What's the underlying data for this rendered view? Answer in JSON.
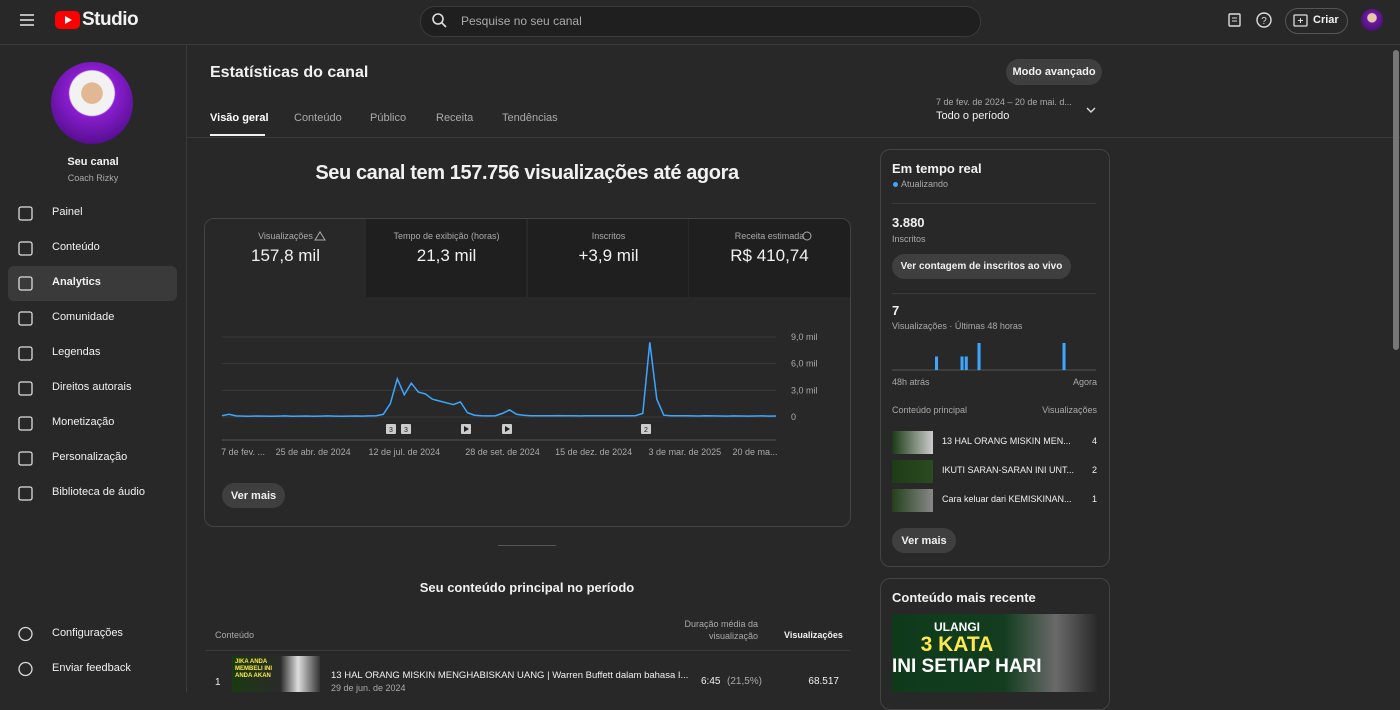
{
  "header": {
    "logo": "Studio",
    "search_placeholder": "Pesquise no seu canal",
    "create": "Criar"
  },
  "sidebar": {
    "channel_title": "Seu canal",
    "channel_name": "Coach Rizky",
    "nav": [
      "Painel",
      "Conteúdo",
      "Analytics",
      "Comunidade",
      "Legendas",
      "Direitos autorais",
      "Monetização",
      "Personalização",
      "Biblioteca de áudio"
    ],
    "footer": [
      "Configurações",
      "Enviar feedback"
    ]
  },
  "page": {
    "title": "Estatísticas do canal",
    "advanced": "Modo avançado",
    "tabs": [
      "Visão geral",
      "Conteúdo",
      "Público",
      "Receita",
      "Tendências"
    ],
    "date_range": "7 de fev. de 2024 – 20 de mai. d...",
    "period": "Todo o período"
  },
  "overview": {
    "headline": "Seu canal tem 157.756 visualizações até agora",
    "cards": [
      {
        "label": "Visualizações",
        "value": "157,8 mil"
      },
      {
        "label": "Tempo de exibição (horas)",
        "value": "21,3 mil"
      },
      {
        "label": "Inscritos",
        "value": "+3,9 mil"
      },
      {
        "label": "Receita estimada",
        "value": "R$ 410,74"
      }
    ],
    "annotations": [
      "3",
      "3",
      "2"
    ],
    "see_more": "Ver mais"
  },
  "chart_data": [
    {
      "type": "line",
      "categories": [
        null,
        null,
        null,
        "7 de fev. ...",
        null,
        null,
        null,
        null,
        null,
        null,
        null,
        null,
        null,
        "25 de abr. de 2024",
        null,
        null,
        null,
        null,
        null,
        null,
        null,
        null,
        null,
        null,
        null,
        null,
        "12 de jul. de 2024",
        null,
        null,
        null,
        null,
        null,
        null,
        null,
        null,
        null,
        null,
        null,
        null,
        null,
        "28 de set. de 2024",
        null,
        null,
        null,
        null,
        null,
        null,
        null,
        null,
        null,
        null,
        null,
        null,
        "15 de dez. de 2024",
        null,
        null,
        null,
        null,
        null,
        null,
        null,
        null,
        null,
        null,
        null,
        null,
        "3 de mar. de 2025",
        null,
        null,
        null,
        null,
        null,
        null,
        null,
        null,
        null,
        "20 de ma...",
        null,
        null,
        null
      ],
      "series": [
        {
          "color": "#3ea6ff",
          "values": [
            150,
            300,
            120,
            100,
            90,
            110,
            100,
            80,
            100,
            120,
            90,
            100,
            110,
            90,
            100,
            120,
            100,
            90,
            100,
            110,
            100,
            120,
            150,
            300,
            1500,
            4300,
            2500,
            3800,
            2800,
            2600,
            2000,
            1800,
            1600,
            1400,
            1700,
            500,
            200,
            150,
            120,
            150,
            400,
            800,
            300,
            200,
            150,
            140,
            130,
            150,
            160,
            140,
            130,
            120,
            150,
            140,
            130,
            150,
            140,
            130,
            150,
            160,
            400,
            8400,
            2000,
            200,
            150,
            140,
            130,
            120,
            110,
            130,
            120,
            110,
            100,
            120,
            110,
            100,
            110,
            120,
            100,
            110
          ]
        }
      ],
      "ylim": [
        0,
        9000
      ],
      "yticks": [
        0,
        {
          "value": 3000,
          "label": "3,0 mil"
        },
        {
          "value": 6000,
          "label": "6,0 mil"
        },
        {
          "value": 9000,
          "label": "9,0 mil"
        }
      ],
      "grid": true
    },
    {
      "type": "bar",
      "color": "#3ea6ff",
      "values": [
        0,
        0,
        0,
        0,
        0,
        0,
        0,
        0,
        0,
        0,
        1,
        0,
        0,
        0,
        0,
        0,
        1,
        1,
        0,
        0,
        2,
        0,
        0,
        0,
        0,
        0,
        0,
        0,
        0,
        0,
        0,
        0,
        0,
        0,
        0,
        0,
        0,
        0,
        0,
        0,
        2,
        0,
        0,
        0,
        0,
        0,
        0,
        0
      ]
    }
  ],
  "realtime": {
    "title": "Em tempo real",
    "status": "Atualizando",
    "subs": "3.880",
    "subs_label": "Inscritos",
    "live_button": "Ver contagem de inscritos ao vivo",
    "views": "7",
    "views_label": "Visualizações · Últimas 48 horas",
    "from": "48h atrás",
    "to": "Agora",
    "top_label": "Conteúdo principal",
    "top_views_label": "Visualizações",
    "items": [
      {
        "title": "13 HAL ORANG MISKIN MEN...",
        "views": "4"
      },
      {
        "title": "IKUTI SARAN-SARAN INI UNT...",
        "views": "2"
      },
      {
        "title": "Cara keluar dari KEMISKINAN...",
        "views": "1"
      }
    ],
    "see_more": "Ver mais"
  },
  "recent": {
    "title": "Conteúdo mais recente",
    "thumb_lines": [
      "ULANGI",
      "3 KATA",
      "INI SETIAP HARI"
    ]
  },
  "top_content": {
    "title": "Seu conteúdo principal no período",
    "columns": [
      "Conteúdo",
      "Duração média da visualização",
      "Visualizações"
    ],
    "rows": [
      {
        "rank": "1",
        "thumb_text": "JIKA ANDA MEMBELI INI ANDA AKAN",
        "title": "13 HAL ORANG MISKIN MENGHABISKAN UANG | Warren Buffett dalam bahasa I...",
        "date": "29 de jun. de 2024",
        "duration": "6:45",
        "percent": "(21,5%)",
        "views": "68.517"
      }
    ]
  }
}
